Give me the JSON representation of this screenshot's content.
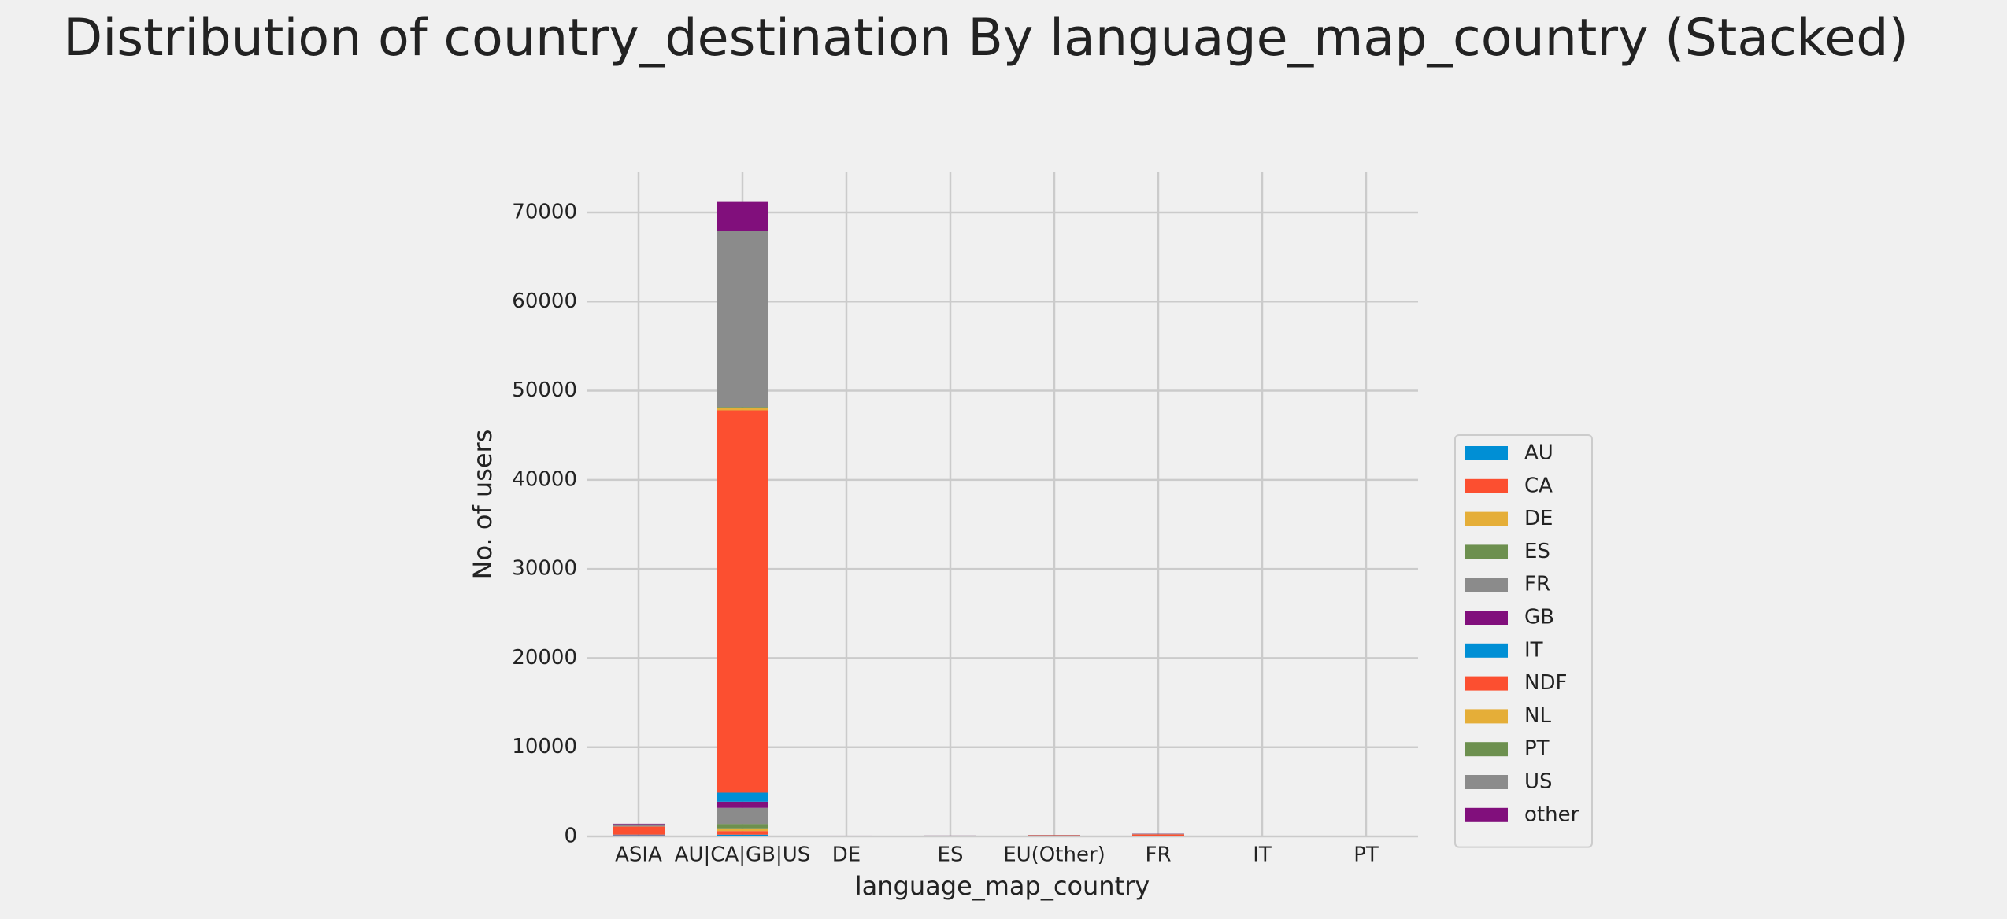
{
  "chart_data": {
    "type": "bar",
    "stacked": true,
    "title": "Distribution of country_destination By language_map_country (Stacked)",
    "x_label": "language_map_country",
    "y_label": "No. of users",
    "categories": [
      "ASIA",
      "AU|CA|GB|US",
      "DE",
      "ES",
      "EU(Other)",
      "FR",
      "IT",
      "PT"
    ],
    "series": [
      {
        "name": "AU",
        "color": "#008fd5",
        "values": [
          10,
          200,
          2,
          2,
          3,
          5,
          1,
          0
        ]
      },
      {
        "name": "CA",
        "color": "#fc4f30",
        "values": [
          20,
          400,
          3,
          3,
          5,
          8,
          2,
          0
        ]
      },
      {
        "name": "DE",
        "color": "#e5ae38",
        "values": [
          15,
          300,
          10,
          3,
          6,
          6,
          2,
          0
        ]
      },
      {
        "name": "ES",
        "color": "#6d904f",
        "values": [
          25,
          500,
          3,
          10,
          8,
          8,
          3,
          1
        ]
      },
      {
        "name": "FR",
        "color": "#8b8b8b",
        "values": [
          60,
          1800,
          5,
          5,
          10,
          40,
          3,
          1
        ]
      },
      {
        "name": "GB",
        "color": "#810f7c",
        "values": [
          30,
          700,
          3,
          3,
          6,
          8,
          2,
          0
        ]
      },
      {
        "name": "IT",
        "color": "#008fd5",
        "values": [
          40,
          1000,
          3,
          4,
          8,
          8,
          10,
          1
        ]
      },
      {
        "name": "NDF",
        "color": "#fc4f30",
        "values": [
          900,
          42900,
          40,
          50,
          80,
          150,
          20,
          5
        ]
      },
      {
        "name": "NL",
        "color": "#e5ae38",
        "values": [
          10,
          300,
          1,
          1,
          3,
          4,
          1,
          0
        ]
      },
      {
        "name": "PT",
        "color": "#6d904f",
        "values": [
          2,
          80,
          0,
          0,
          1,
          1,
          0,
          1
        ]
      },
      {
        "name": "US",
        "color": "#8b8b8b",
        "values": [
          250,
          19700,
          15,
          20,
          30,
          60,
          8,
          2
        ]
      },
      {
        "name": "other",
        "color": "#810f7c",
        "values": [
          60,
          3300,
          5,
          6,
          10,
          20,
          3,
          1
        ]
      }
    ],
    "ylim": [
      0,
      74500
    ],
    "yticks": [
      0,
      10000,
      20000,
      30000,
      40000,
      50000,
      60000,
      70000
    ],
    "grid": true,
    "legend": "right"
  }
}
